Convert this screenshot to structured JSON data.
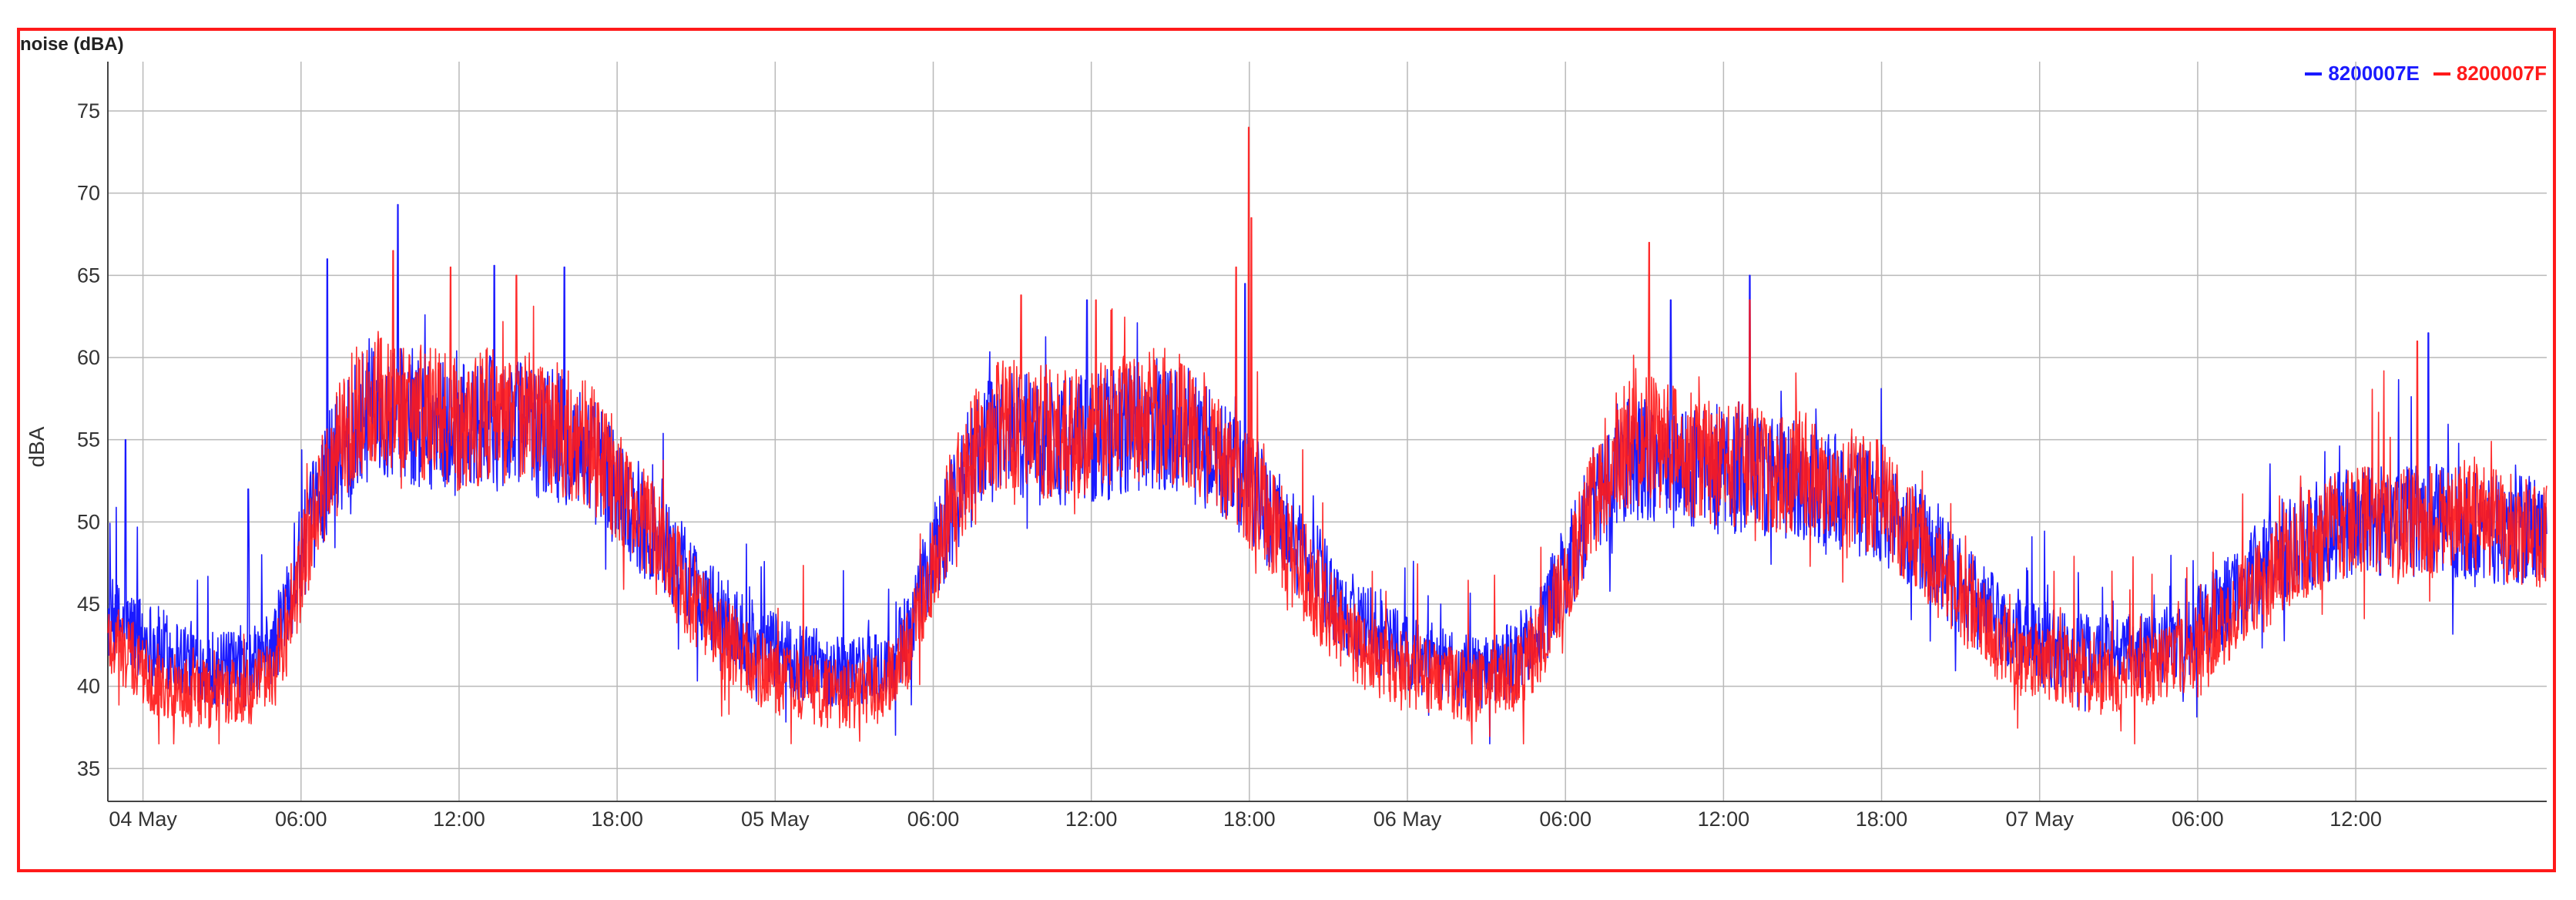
{
  "chart_data": {
    "type": "line",
    "title": "noise (dBA)",
    "ylabel": "dBA",
    "xlabel": "",
    "ylim": [
      33,
      78
    ],
    "yticks": [
      35,
      40,
      45,
      50,
      55,
      60,
      65,
      70,
      75
    ],
    "x_range": [
      "2024-05-03 22:40",
      "2024-05-07 19:15"
    ],
    "x_ticks": [
      {
        "t": "2024-05-04 00:00",
        "label": "04 May"
      },
      {
        "t": "2024-05-04 06:00",
        "label": "06:00"
      },
      {
        "t": "2024-05-04 12:00",
        "label": "12:00"
      },
      {
        "t": "2024-05-04 18:00",
        "label": "18:00"
      },
      {
        "t": "2024-05-05 00:00",
        "label": "05 May"
      },
      {
        "t": "2024-05-05 06:00",
        "label": "06:00"
      },
      {
        "t": "2024-05-05 12:00",
        "label": "12:00"
      },
      {
        "t": "2024-05-05 18:00",
        "label": "18:00"
      },
      {
        "t": "2024-05-06 00:00",
        "label": "06 May"
      },
      {
        "t": "2024-05-06 06:00",
        "label": "06:00"
      },
      {
        "t": "2024-05-06 12:00",
        "label": "12:00"
      },
      {
        "t": "2024-05-06 18:00",
        "label": "18:00"
      },
      {
        "t": "2024-05-07 00:00",
        "label": "07 May"
      },
      {
        "t": "2024-05-07 06:00",
        "label": "06:00"
      },
      {
        "t": "2024-05-07 12:00",
        "label": "12:00"
      }
    ],
    "grid": true,
    "legend_position": "top-right",
    "series": [
      {
        "name": "8200007E",
        "color": "#1a1aff",
        "points": [
          [
            "2024-05-03 22:40",
            44
          ],
          [
            "2024-05-04 00:00",
            43
          ],
          [
            "2024-05-04 01:00",
            42
          ],
          [
            "2024-05-04 02:00",
            41.5
          ],
          [
            "2024-05-04 03:00",
            41
          ],
          [
            "2024-05-04 04:00",
            41
          ],
          [
            "2024-05-04 05:00",
            42.5
          ],
          [
            "2024-05-04 06:00",
            48
          ],
          [
            "2024-05-04 07:00",
            53
          ],
          [
            "2024-05-04 08:00",
            56
          ],
          [
            "2024-05-04 09:00",
            57
          ],
          [
            "2024-05-04 10:00",
            56.5
          ],
          [
            "2024-05-04 11:00",
            56
          ],
          [
            "2024-05-04 12:00",
            55.5
          ],
          [
            "2024-05-04 13:00",
            56
          ],
          [
            "2024-05-04 14:00",
            56
          ],
          [
            "2024-05-04 15:00",
            55.5
          ],
          [
            "2024-05-04 16:00",
            55
          ],
          [
            "2024-05-04 17:00",
            54
          ],
          [
            "2024-05-04 18:00",
            52
          ],
          [
            "2024-05-04 19:00",
            50
          ],
          [
            "2024-05-04 20:00",
            48
          ],
          [
            "2024-05-04 21:00",
            46
          ],
          [
            "2024-05-04 22:00",
            44
          ],
          [
            "2024-05-04 23:00",
            43
          ],
          [
            "2024-05-05 00:00",
            42
          ],
          [
            "2024-05-05 01:00",
            41.5
          ],
          [
            "2024-05-05 02:00",
            41
          ],
          [
            "2024-05-05 03:00",
            41
          ],
          [
            "2024-05-05 04:00",
            41
          ],
          [
            "2024-05-05 05:00",
            43
          ],
          [
            "2024-05-05 06:00",
            48
          ],
          [
            "2024-05-05 07:00",
            52
          ],
          [
            "2024-05-05 08:00",
            55
          ],
          [
            "2024-05-05 09:00",
            55.5
          ],
          [
            "2024-05-05 10:00",
            55
          ],
          [
            "2024-05-05 11:00",
            55
          ],
          [
            "2024-05-05 12:00",
            55
          ],
          [
            "2024-05-05 13:00",
            55.5
          ],
          [
            "2024-05-05 14:00",
            56
          ],
          [
            "2024-05-05 15:00",
            56
          ],
          [
            "2024-05-05 16:00",
            55
          ],
          [
            "2024-05-05 17:00",
            53.5
          ],
          [
            "2024-05-05 18:00",
            52
          ],
          [
            "2024-05-05 19:00",
            50
          ],
          [
            "2024-05-05 20:00",
            48
          ],
          [
            "2024-05-05 21:00",
            46
          ],
          [
            "2024-05-05 22:00",
            44
          ],
          [
            "2024-05-05 23:00",
            43
          ],
          [
            "2024-05-06 00:00",
            42
          ],
          [
            "2024-05-06 01:00",
            41.5
          ],
          [
            "2024-05-06 02:00",
            41
          ],
          [
            "2024-05-06 03:00",
            41
          ],
          [
            "2024-05-06 04:00",
            41.5
          ],
          [
            "2024-05-06 05:00",
            43.5
          ],
          [
            "2024-05-06 06:00",
            47
          ],
          [
            "2024-05-06 07:00",
            51
          ],
          [
            "2024-05-06 08:00",
            53.5
          ],
          [
            "2024-05-06 09:00",
            54
          ],
          [
            "2024-05-06 10:00",
            53.5
          ],
          [
            "2024-05-06 11:00",
            53
          ],
          [
            "2024-05-06 12:00",
            53
          ],
          [
            "2024-05-06 13:00",
            53
          ],
          [
            "2024-05-06 14:00",
            52.5
          ],
          [
            "2024-05-06 15:00",
            52.5
          ],
          [
            "2024-05-06 16:00",
            52
          ],
          [
            "2024-05-06 17:00",
            51.5
          ],
          [
            "2024-05-06 18:00",
            51
          ],
          [
            "2024-05-06 19:00",
            49.5
          ],
          [
            "2024-05-06 20:00",
            48
          ],
          [
            "2024-05-06 21:00",
            46
          ],
          [
            "2024-05-06 22:00",
            44.5
          ],
          [
            "2024-05-06 23:00",
            43
          ],
          [
            "2024-05-07 00:00",
            42.5
          ],
          [
            "2024-05-07 01:00",
            42
          ],
          [
            "2024-05-07 02:00",
            42
          ],
          [
            "2024-05-07 03:00",
            42
          ],
          [
            "2024-05-07 04:00",
            42
          ],
          [
            "2024-05-07 05:00",
            42.5
          ],
          [
            "2024-05-07 06:00",
            43.5
          ],
          [
            "2024-05-07 07:00",
            45
          ],
          [
            "2024-05-07 08:00",
            46.5
          ],
          [
            "2024-05-07 09:00",
            48
          ],
          [
            "2024-05-07 10:00",
            49
          ],
          [
            "2024-05-07 11:00",
            49.5
          ],
          [
            "2024-05-07 12:00",
            50
          ],
          [
            "2024-05-07 13:00",
            50
          ],
          [
            "2024-05-07 14:00",
            50
          ],
          [
            "2024-05-07 15:00",
            50
          ],
          [
            "2024-05-07 16:00",
            50
          ],
          [
            "2024-05-07 17:00",
            49.5
          ],
          [
            "2024-05-07 18:00",
            49.5
          ],
          [
            "2024-05-07 19:15",
            49.5
          ]
        ],
        "peaks": [
          [
            "2024-05-04 09:40",
            69.3
          ],
          [
            "2024-05-04 07:00",
            66
          ],
          [
            "2024-05-04 13:20",
            65.6
          ],
          [
            "2024-05-04 16:00",
            65.5
          ],
          [
            "2024-05-05 11:50",
            63.5
          ],
          [
            "2024-05-05 17:50",
            64.5
          ],
          [
            "2024-05-06 10:00",
            63.5
          ],
          [
            "2024-05-06 13:00",
            65
          ],
          [
            "2024-05-07 14:45",
            61.5
          ],
          [
            "2024-05-03 23:20",
            55
          ],
          [
            "2024-05-04 04:00",
            52
          ]
        ]
      },
      {
        "name": "8200007F",
        "color": "#ff1a1a",
        "points": [
          [
            "2024-05-03 22:40",
            43
          ],
          [
            "2024-05-04 00:00",
            41
          ],
          [
            "2024-05-04 01:00",
            40
          ],
          [
            "2024-05-04 02:00",
            39.5
          ],
          [
            "2024-05-04 03:00",
            39.5
          ],
          [
            "2024-05-04 04:00",
            39.5
          ],
          [
            "2024-05-04 05:00",
            41
          ],
          [
            "2024-05-04 06:00",
            47
          ],
          [
            "2024-05-04 07:00",
            53
          ],
          [
            "2024-05-04 08:00",
            56.5
          ],
          [
            "2024-05-04 09:00",
            57.5
          ],
          [
            "2024-05-04 10:00",
            57
          ],
          [
            "2024-05-04 11:00",
            56.5
          ],
          [
            "2024-05-04 12:00",
            56
          ],
          [
            "2024-05-04 13:00",
            56.5
          ],
          [
            "2024-05-04 14:00",
            56.5
          ],
          [
            "2024-05-04 15:00",
            56
          ],
          [
            "2024-05-04 16:00",
            55.5
          ],
          [
            "2024-05-04 17:00",
            54.5
          ],
          [
            "2024-05-04 18:00",
            52.5
          ],
          [
            "2024-05-04 19:00",
            50
          ],
          [
            "2024-05-04 20:00",
            47.5
          ],
          [
            "2024-05-04 21:00",
            45
          ],
          [
            "2024-05-04 22:00",
            43
          ],
          [
            "2024-05-04 23:00",
            41.5
          ],
          [
            "2024-05-05 00:00",
            40.5
          ],
          [
            "2024-05-05 01:00",
            40
          ],
          [
            "2024-05-05 02:00",
            39.5
          ],
          [
            "2024-05-05 03:00",
            39.5
          ],
          [
            "2024-05-05 04:00",
            40
          ],
          [
            "2024-05-05 05:00",
            42
          ],
          [
            "2024-05-05 06:00",
            47.5
          ],
          [
            "2024-05-05 07:00",
            52.5
          ],
          [
            "2024-05-05 08:00",
            55.5
          ],
          [
            "2024-05-05 09:00",
            56
          ],
          [
            "2024-05-05 10:00",
            55.5
          ],
          [
            "2024-05-05 11:00",
            55.5
          ],
          [
            "2024-05-05 12:00",
            55.5
          ],
          [
            "2024-05-05 13:00",
            56
          ],
          [
            "2024-05-05 14:00",
            56.5
          ],
          [
            "2024-05-05 15:00",
            56.5
          ],
          [
            "2024-05-05 16:00",
            55.5
          ],
          [
            "2024-05-05 17:00",
            54
          ],
          [
            "2024-05-05 18:00",
            52
          ],
          [
            "2024-05-05 19:00",
            49.5
          ],
          [
            "2024-05-05 20:00",
            47
          ],
          [
            "2024-05-05 21:00",
            44.5
          ],
          [
            "2024-05-05 22:00",
            42.5
          ],
          [
            "2024-05-05 23:00",
            41.5
          ],
          [
            "2024-05-06 00:00",
            41
          ],
          [
            "2024-05-06 01:00",
            40.5
          ],
          [
            "2024-05-06 02:00",
            40
          ],
          [
            "2024-05-06 03:00",
            40
          ],
          [
            "2024-05-06 04:00",
            40.5
          ],
          [
            "2024-05-06 05:00",
            42.5
          ],
          [
            "2024-05-06 06:00",
            46.5
          ],
          [
            "2024-05-06 07:00",
            51
          ],
          [
            "2024-05-06 08:00",
            54.5
          ],
          [
            "2024-05-06 09:00",
            55
          ],
          [
            "2024-05-06 10:00",
            54.5
          ],
          [
            "2024-05-06 11:00",
            54
          ],
          [
            "2024-05-06 12:00",
            53.5
          ],
          [
            "2024-05-06 13:00",
            53.5
          ],
          [
            "2024-05-06 14:00",
            53
          ],
          [
            "2024-05-06 15:00",
            53
          ],
          [
            "2024-05-06 16:00",
            52.5
          ],
          [
            "2024-05-06 17:00",
            52
          ],
          [
            "2024-05-06 18:00",
            51.5
          ],
          [
            "2024-05-06 19:00",
            49.5
          ],
          [
            "2024-05-06 20:00",
            47.5
          ],
          [
            "2024-05-06 21:00",
            45.5
          ],
          [
            "2024-05-06 22:00",
            43.5
          ],
          [
            "2024-05-06 23:00",
            42
          ],
          [
            "2024-05-07 00:00",
            41.5
          ],
          [
            "2024-05-07 01:00",
            41
          ],
          [
            "2024-05-07 02:00",
            40.5
          ],
          [
            "2024-05-07 03:00",
            40.5
          ],
          [
            "2024-05-07 04:00",
            41
          ],
          [
            "2024-05-07 05:00",
            41.5
          ],
          [
            "2024-05-07 06:00",
            42.5
          ],
          [
            "2024-05-07 07:00",
            44
          ],
          [
            "2024-05-07 08:00",
            45.5
          ],
          [
            "2024-05-07 09:00",
            47
          ],
          [
            "2024-05-07 10:00",
            48.5
          ],
          [
            "2024-05-07 11:00",
            49.5
          ],
          [
            "2024-05-07 12:00",
            50
          ],
          [
            "2024-05-07 13:00",
            50
          ],
          [
            "2024-05-07 14:00",
            50
          ],
          [
            "2024-05-07 15:00",
            50
          ],
          [
            "2024-05-07 16:00",
            50.5
          ],
          [
            "2024-05-07 17:00",
            50
          ],
          [
            "2024-05-07 18:00",
            49.5
          ],
          [
            "2024-05-07 19:15",
            49
          ]
        ],
        "peaks": [
          [
            "2024-05-05 17:58",
            74
          ],
          [
            "2024-05-05 18:05",
            68.5
          ],
          [
            "2024-05-04 09:30",
            66.5
          ],
          [
            "2024-05-04 11:40",
            65.5
          ],
          [
            "2024-05-05 17:30",
            65.5
          ],
          [
            "2024-05-06 09:10",
            67
          ],
          [
            "2024-05-04 14:10",
            65
          ],
          [
            "2024-05-05 09:20",
            63.8
          ],
          [
            "2024-05-05 12:10",
            63.5
          ],
          [
            "2024-05-06 13:00",
            63.5
          ],
          [
            "2024-05-07 14:20",
            61
          ]
        ]
      }
    ]
  }
}
